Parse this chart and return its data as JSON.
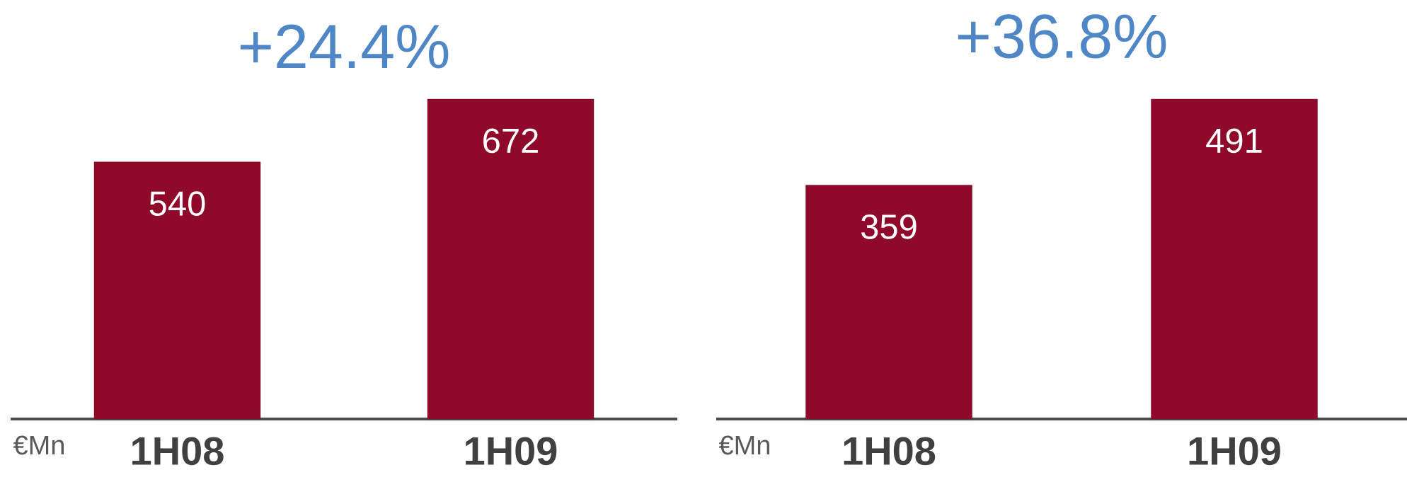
{
  "chart_data": [
    {
      "type": "bar",
      "title": "+24.4%",
      "annotations": [
        "€Mn"
      ],
      "categories": [
        "1H08",
        "1H09"
      ],
      "values": [
        540,
        672
      ],
      "color": "#8f0a2a",
      "data_labels": true
    },
    {
      "type": "bar",
      "title": "+36.8%",
      "annotations": [
        "€Mn"
      ],
      "categories": [
        "1H08",
        "1H09"
      ],
      "values": [
        359,
        491
      ],
      "color": "#8f0a2a",
      "data_labels": true
    }
  ]
}
